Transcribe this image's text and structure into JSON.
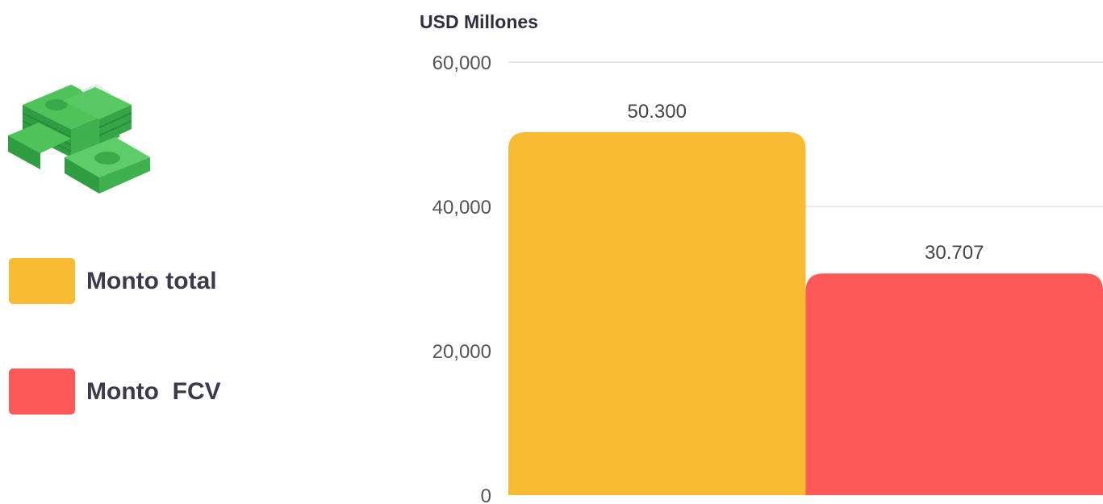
{
  "chart_data": {
    "type": "bar",
    "unit_label": "USD Millones",
    "categories": [
      "Monto total",
      "Monto  FCV"
    ],
    "values": [
      50300,
      30707
    ],
    "value_labels": [
      "50.300",
      "30.707"
    ],
    "colors": [
      "#F9BA34",
      "#FF5858"
    ],
    "ylim": [
      0,
      60000
    ],
    "yticks": [
      0,
      20000,
      40000,
      60000
    ],
    "ytick_labels": [
      "0",
      "20,000",
      "40,000",
      "60,000"
    ],
    "grid": true,
    "legend_position": "left"
  },
  "legend": {
    "items": [
      {
        "label": "Monto total",
        "color": "#F9BA34"
      },
      {
        "label": "Monto  FCV",
        "color": "#FF5858"
      }
    ]
  },
  "icons": {
    "decorative": "money-stack-icon"
  }
}
